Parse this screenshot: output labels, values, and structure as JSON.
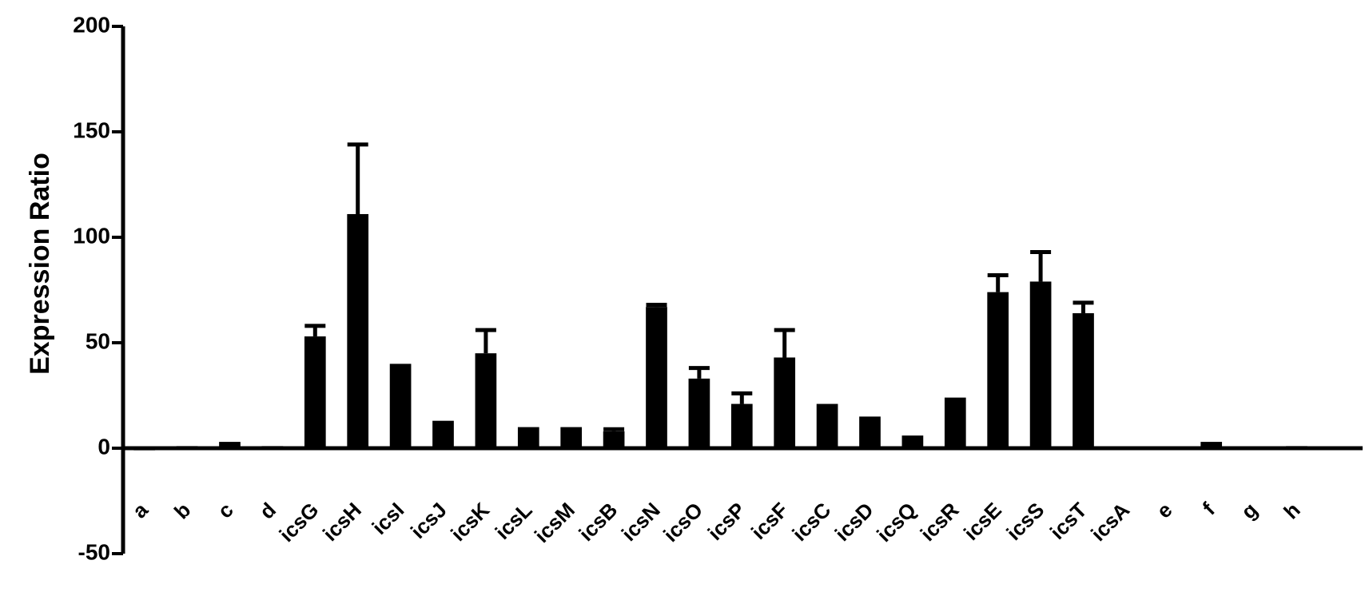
{
  "chart_data": {
    "type": "bar",
    "y_label": "Expression Ratio",
    "categories": [
      "a",
      "b",
      "c",
      "d",
      "icsG",
      "icsH",
      "icsI",
      "icsJ",
      "icsK",
      "icsL",
      "icsM",
      "icsB",
      "icsN",
      "icsO",
      "icsP",
      "icsF",
      "icsC",
      "icsD",
      "icsQ",
      "icsR",
      "icsE",
      "icsS",
      "icsT",
      "icsA",
      "e",
      "f",
      "g",
      "h"
    ],
    "values": [
      -1,
      1,
      3,
      1,
      53,
      111,
      40,
      13,
      45,
      10,
      10,
      8,
      67,
      33,
      21,
      43,
      21,
      15,
      6,
      24,
      74,
      79,
      64,
      0,
      0,
      3,
      0,
      1
    ],
    "errors": [
      0,
      0,
      0,
      0,
      5,
      33,
      0,
      0,
      11,
      0,
      0,
      1,
      1,
      5,
      5,
      13,
      0,
      0,
      0,
      0,
      8,
      14,
      5,
      0,
      0,
      0,
      0,
      0
    ],
    "color": "#000000",
    "ylim": [
      -50,
      200
    ],
    "yticks": [
      -50,
      0,
      50,
      100,
      150,
      200
    ]
  }
}
